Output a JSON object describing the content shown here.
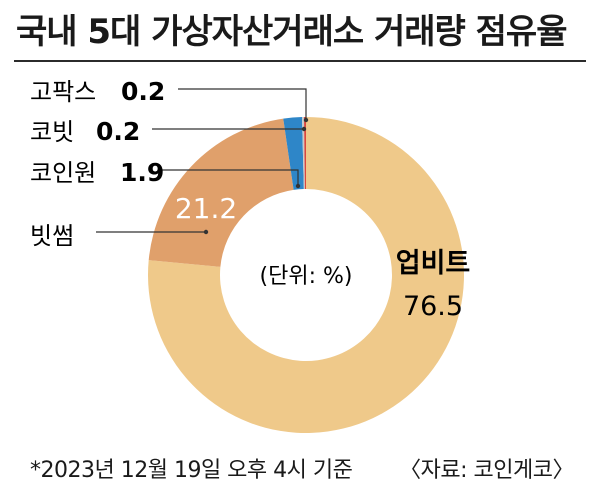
{
  "title": "국내 5대 가상자산거래소 거래량 점유율",
  "footnote": "*2023년 12월 19일 오후 4시 기준",
  "source": "〈자료: 코인게코〉",
  "center_label": "(단위: %)",
  "colors": {
    "upbit": "#efc98a",
    "bithumb": "#e0a06b",
    "coinone": "#2e86c8",
    "korbit": "#c9c9c9",
    "gopax": "#d9473f"
  },
  "chart_data": {
    "type": "pie",
    "unit": "%",
    "categories": [
      "업비트",
      "빗썸",
      "코인원",
      "코빗",
      "고팍스"
    ],
    "values": [
      76.5,
      21.2,
      1.9,
      0.2,
      0.2
    ],
    "labels": {
      "upbit_name": "업비트",
      "upbit_value": "76.5",
      "bithumb_name": "빗썸",
      "bithumb_value": "21.2",
      "coinone_name": "코인원",
      "coinone_value": "1.9",
      "korbit_name": "코빗",
      "korbit_value": "0.2",
      "gopax_name": "고팍스",
      "gopax_value": "0.2"
    }
  }
}
